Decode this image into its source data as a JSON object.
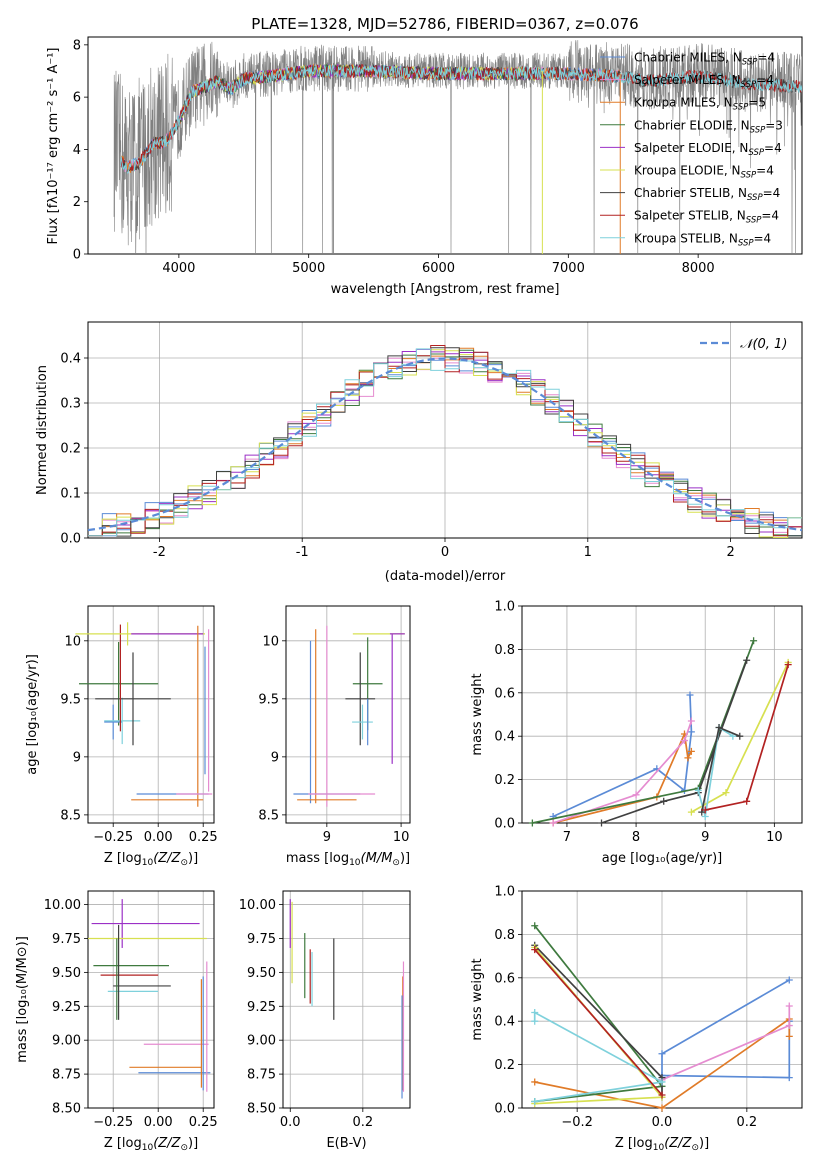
{
  "figure": {
    "colors": {
      "chabrier_miles": "#5b8bd6",
      "salpeter_miles": "#e58cd0",
      "kroupa_miles": "#e07b28",
      "chabrier_elodie": "#3f7a3f",
      "salpeter_elodie": "#9b30c6",
      "kroupa_elodie": "#d7e050",
      "chabrier_stelib": "#404040",
      "salpeter_stelib": "#b22222",
      "kroupa_stelib": "#7fd1dc",
      "observed": "#808080",
      "gaussian": "#5b8bd6"
    }
  },
  "chart_data": [
    {
      "id": "spectrum",
      "type": "line",
      "title": "PLATE=1328, MJD=52786, FIBERID=0367, z=0.076",
      "xlabel": "wavelength [Angstrom, rest frame]",
      "ylabel": "Flux [fλ10⁻¹⁷ erg cm⁻² s⁻¹ A⁻¹]",
      "xlim": [
        3300,
        8800
      ],
      "ylim": [
        0,
        8.3
      ],
      "xticks": [
        4000,
        5000,
        6000,
        7000,
        8000
      ],
      "yticks": [
        0,
        2,
        4,
        6,
        8
      ],
      "grid": false,
      "legend": "right",
      "legend_entries": [
        {
          "label": "Chabrier MILES, N",
          "sub": "SSP",
          "tail": "=4",
          "color_key": "chabrier_miles"
        },
        {
          "label": "Salpeter MILES, N",
          "sub": "SSP",
          "tail": "=4",
          "color_key": "salpeter_miles"
        },
        {
          "label": "Kroupa MILES, N",
          "sub": "SSP",
          "tail": "=5",
          "color_key": "kroupa_miles"
        },
        {
          "label": "Chabrier ELODIE, N",
          "sub": "SSP",
          "tail": "=3",
          "color_key": "chabrier_elodie"
        },
        {
          "label": "Salpeter ELODIE, N",
          "sub": "SSP",
          "tail": "=4",
          "color_key": "salpeter_elodie"
        },
        {
          "label": "Kroupa ELODIE, N",
          "sub": "SSP",
          "tail": "=4",
          "color_key": "kroupa_elodie"
        },
        {
          "label": "Chabrier STELIB, N",
          "sub": "SSP",
          "tail": "=4",
          "color_key": "chabrier_stelib"
        },
        {
          "label": "Salpeter STELIB, N",
          "sub": "SSP",
          "tail": "=4",
          "color_key": "salpeter_stelib"
        },
        {
          "label": "Kroupa STELIB, N",
          "sub": "SSP",
          "tail": "=4",
          "color_key": "kroupa_stelib"
        }
      ],
      "model_continuum": {
        "x": [
          3500,
          3600,
          3700,
          3800,
          3900,
          4000,
          4100,
          4200,
          4300,
          4400,
          4500,
          4700,
          5000,
          5500,
          6000,
          6500,
          7000,
          7400,
          7600,
          8000,
          8400,
          8800
        ],
        "y": [
          4.0,
          3.4,
          3.6,
          4.3,
          4.4,
          5.2,
          6.3,
          6.5,
          6.7,
          6.4,
          6.8,
          6.9,
          7.1,
          7.1,
          7.0,
          7.0,
          7.0,
          6.9,
          6.7,
          6.9,
          6.6,
          6.5
        ]
      },
      "observed_note": "observed spectrum drawn as noisy grey trace around the model continuum"
    },
    {
      "id": "residuals",
      "type": "area",
      "xlabel": "(data-model)/error",
      "ylabel": "Normed distribution",
      "xlim": [
        -2.5,
        2.5
      ],
      "ylim": [
        0,
        0.48
      ],
      "xticks": [
        -2,
        -1,
        0,
        1,
        2
      ],
      "yticks": [
        0.0,
        0.1,
        0.2,
        0.3,
        0.4
      ],
      "grid": true,
      "legend": "top-right",
      "legend_label": "𝒩(0, 1)",
      "bin_width": 0.1
    },
    {
      "id": "z_age",
      "type": "scatter",
      "xlabel_parts": [
        "Z [log",
        "10",
        "(Z/Z",
        "⊙",
        ")]"
      ],
      "ylabel": "age  [log₁₀(age/yr)]",
      "xlim": [
        -0.39,
        0.31
      ],
      "ylim": [
        8.43,
        10.3
      ],
      "xticks": [
        -0.25,
        0.0,
        0.25
      ],
      "xticklabels": [
        "−0.25",
        "0.00",
        "0.25"
      ],
      "yticks": [
        8.5,
        9.0,
        9.5,
        10.0
      ],
      "grid": true,
      "points": [
        {
          "x": -0.22,
          "y": 9.63,
          "ex": 0.22,
          "ey": 0.36,
          "c": "chabrier_elodie"
        },
        {
          "x": -0.25,
          "y": 9.3,
          "ex": 0.05,
          "ey": 0.15,
          "c": "chabrier_miles"
        },
        {
          "x": -0.2,
          "y": 9.31,
          "ex": 0.1,
          "ey": 0.2,
          "c": "kroupa_stelib"
        },
        {
          "x": -0.14,
          "y": 9.5,
          "ex": 0.21,
          "ey": 0.4,
          "c": "chabrier_stelib"
        },
        {
          "x": -0.21,
          "y": 9.68,
          "ex": 0.0,
          "ey": 0.46,
          "c": "salpeter_stelib"
        },
        {
          "x": -0.17,
          "y": 10.06,
          "ex": 0.0,
          "ey": 0.1,
          "c": "kroupa_elodie"
        },
        {
          "x": -0.1,
          "y": 10.06,
          "ex": 0.36,
          "ey": 0.0,
          "c": "kroupa_elodie"
        },
        {
          "x": 0.05,
          "y": 10.06,
          "ex": 0.2,
          "ey": 0.0,
          "c": "salpeter_elodie"
        },
        {
          "x": 0.22,
          "y": 9.35,
          "ex": 0.0,
          "ey": 0.78,
          "c": "kroupa_miles"
        },
        {
          "x": 0.26,
          "y": 9.4,
          "ex": 0.0,
          "ey": 0.55,
          "c": "chabrier_miles"
        },
        {
          "x": 0.28,
          "y": 9.4,
          "ex": 0.0,
          "ey": 0.7,
          "c": "salpeter_miles"
        },
        {
          "x": 0.05,
          "y": 8.63,
          "ex": 0.2,
          "ey": 0.0,
          "c": "kroupa_miles"
        },
        {
          "x": 0.08,
          "y": 8.68,
          "ex": 0.2,
          "ey": 0.0,
          "c": "chabrier_miles"
        },
        {
          "x": 0.2,
          "y": 8.68,
          "ex": 0.1,
          "ey": 0.0,
          "c": "salpeter_miles"
        }
      ]
    },
    {
      "id": "mass_age",
      "type": "scatter",
      "xlabel_parts": [
        "mass [log",
        "10",
        "(M/M",
        "⊙",
        ")]"
      ],
      "xlim": [
        8.45,
        10.12
      ],
      "ylim": [
        8.43,
        10.3
      ],
      "xticks": [
        9,
        10
      ],
      "yticks": [
        8.5,
        9.0,
        9.5,
        10.0
      ],
      "grid": true,
      "points": [
        {
          "x": 8.78,
          "y": 9.3,
          "ex": 0.0,
          "ey": 0.7,
          "c": "chabrier_miles"
        },
        {
          "x": 8.85,
          "y": 9.35,
          "ex": 0.0,
          "ey": 0.75,
          "c": "kroupa_miles"
        },
        {
          "x": 9.0,
          "y": 9.35,
          "ex": 0.0,
          "ey": 0.78,
          "c": "salpeter_miles"
        },
        {
          "x": 9.55,
          "y": 9.63,
          "ex": 0.2,
          "ey": 0.4,
          "c": "chabrier_elodie"
        },
        {
          "x": 9.45,
          "y": 9.5,
          "ex": 0.2,
          "ey": 0.4,
          "c": "chabrier_stelib"
        },
        {
          "x": 9.48,
          "y": 9.3,
          "ex": 0.14,
          "ey": 0.15,
          "c": "kroupa_stelib"
        },
        {
          "x": 9.55,
          "y": 9.3,
          "ex": 0.0,
          "ey": 0.2,
          "c": "chabrier_miles"
        },
        {
          "x": 9.88,
          "y": 9.5,
          "ex": 0.0,
          "ey": 0.56,
          "c": "salpeter_elodie"
        },
        {
          "x": 9.7,
          "y": 10.06,
          "ex": 0.35,
          "ey": 0.0,
          "c": "kroupa_elodie"
        },
        {
          "x": 9.95,
          "y": 10.06,
          "ex": 0.1,
          "ey": 0.0,
          "c": "salpeter_elodie"
        },
        {
          "x": 9.0,
          "y": 8.68,
          "ex": 0.45,
          "ey": 0.0,
          "c": "chabrier_miles"
        },
        {
          "x": 9.2,
          "y": 8.68,
          "ex": 0.45,
          "ey": 0.0,
          "c": "salpeter_miles"
        },
        {
          "x": 9.0,
          "y": 8.63,
          "ex": 0.4,
          "ey": 0.0,
          "c": "kroupa_miles"
        }
      ]
    },
    {
      "id": "age_weight",
      "type": "line",
      "xlabel": "age  [log₁₀(age/yr)]",
      "ylabel": "mass weight",
      "xlim": [
        6.35,
        10.4
      ],
      "ylim": [
        0,
        1.0
      ],
      "xticks": [
        7,
        8,
        9,
        10
      ],
      "yticks": [
        0.0,
        0.2,
        0.4,
        0.6,
        0.8,
        1.0
      ],
      "grid": true,
      "series": [
        {
          "c": "chabrier_miles",
          "x": [
            6.8,
            8.3,
            8.7,
            8.8,
            8.78
          ],
          "y": [
            0.03,
            0.25,
            0.15,
            0.42,
            0.59
          ]
        },
        {
          "c": "kroupa_miles",
          "x": [
            6.8,
            8.3,
            8.7,
            8.75,
            8.8
          ],
          "y": [
            0.0,
            0.12,
            0.41,
            0.3,
            0.33
          ]
        },
        {
          "c": "salpeter_miles",
          "x": [
            6.8,
            8.0,
            8.7,
            8.8
          ],
          "y": [
            0.0,
            0.13,
            0.38,
            0.47
          ]
        },
        {
          "c": "chabrier_elodie",
          "x": [
            6.5,
            8.9,
            9.7
          ],
          "y": [
            0.0,
            0.16,
            0.84
          ]
        },
        {
          "c": "chabrier_stelib",
          "x": [
            7.5,
            8.4,
            8.9,
            9.6
          ],
          "y": [
            0.0,
            0.1,
            0.14,
            0.75
          ]
        },
        {
          "c": "kroupa_elodie",
          "x": [
            8.8,
            9.3,
            10.2
          ],
          "y": [
            0.05,
            0.14,
            0.74
          ]
        },
        {
          "c": "kroupa_stelib",
          "x": [
            8.9,
            9.0,
            9.2,
            9.4
          ],
          "y": [
            0.15,
            0.03,
            0.44,
            0.4
          ]
        },
        {
          "c": "chabrier_stelib",
          "x": [
            8.95,
            9.2,
            9.5
          ],
          "y": [
            0.05,
            0.44,
            0.4
          ]
        },
        {
          "c": "salpeter_stelib",
          "x": [
            9.0,
            9.6,
            10.2
          ],
          "y": [
            0.06,
            0.1,
            0.73
          ]
        }
      ]
    },
    {
      "id": "z_mass",
      "type": "scatter",
      "xlabel_parts": [
        "Z [log",
        "10",
        "(Z/Z",
        "⊙",
        ")]"
      ],
      "ylabel": "mass [log₁₀(M/M⊙)]",
      "xlim": [
        -0.39,
        0.31
      ],
      "ylim": [
        8.5,
        10.1
      ],
      "xticks": [
        -0.25,
        0.0,
        0.25
      ],
      "xticklabels": [
        "−0.25",
        "0.00",
        "0.25"
      ],
      "yticks": [
        8.5,
        8.75,
        9.0,
        9.25,
        9.5,
        9.75,
        10.0
      ],
      "yticklabels": [
        "8.50",
        "8.75",
        "9.00",
        "9.25",
        "9.50",
        "9.75",
        "10.00"
      ],
      "grid": true,
      "points": [
        {
          "x": -0.07,
          "y": 9.86,
          "ex": 0.3,
          "ey": 0.0,
          "c": "salpeter_elodie"
        },
        {
          "x": -0.2,
          "y": 9.86,
          "ex": 0.0,
          "ey": 0.18,
          "c": "salpeter_elodie"
        },
        {
          "x": -0.06,
          "y": 9.75,
          "ex": 0.33,
          "ey": 0.0,
          "c": "kroupa_elodie"
        },
        {
          "x": -0.15,
          "y": 9.55,
          "ex": 0.21,
          "ey": 0.0,
          "c": "chabrier_elodie"
        },
        {
          "x": -0.16,
          "y": 9.48,
          "ex": 0.16,
          "ey": 0.0,
          "c": "salpeter_stelib"
        },
        {
          "x": -0.09,
          "y": 9.4,
          "ex": 0.16,
          "ey": 0.0,
          "c": "chabrier_stelib"
        },
        {
          "x": -0.14,
          "y": 9.36,
          "ex": 0.14,
          "ey": 0.0,
          "c": "kroupa_stelib"
        },
        {
          "x": -0.22,
          "y": 9.5,
          "ex": 0.0,
          "ey": 0.35,
          "c": "chabrier_stelib"
        },
        {
          "x": -0.23,
          "y": 9.45,
          "ex": 0.0,
          "ey": 0.3,
          "c": "chabrier_elodie"
        },
        {
          "x": 0.1,
          "y": 8.97,
          "ex": 0.18,
          "ey": 0.0,
          "c": "salpeter_miles"
        },
        {
          "x": 0.04,
          "y": 8.8,
          "ex": 0.2,
          "ey": 0.0,
          "c": "kroupa_miles"
        },
        {
          "x": 0.09,
          "y": 8.76,
          "ex": 0.2,
          "ey": 0.0,
          "c": "chabrier_miles"
        },
        {
          "x": 0.24,
          "y": 9.05,
          "ex": 0.0,
          "ey": 0.4,
          "c": "kroupa_miles"
        },
        {
          "x": 0.27,
          "y": 9.1,
          "ex": 0.0,
          "ey": 0.48,
          "c": "salpeter_miles"
        },
        {
          "x": 0.25,
          "y": 9.05,
          "ex": 0.0,
          "ey": 0.42,
          "c": "chabrier_miles"
        }
      ]
    },
    {
      "id": "ebv_mass",
      "type": "scatter",
      "xlabel": "E(B-V)",
      "xlim": [
        -0.02,
        0.33
      ],
      "ylim": [
        8.5,
        10.1
      ],
      "xticks": [
        0.0,
        0.2
      ],
      "xticklabels": [
        "0.0",
        "0.2"
      ],
      "yticks": [
        8.5,
        8.75,
        9.0,
        9.25,
        9.5,
        9.75,
        10.0
      ],
      "yticklabels": [
        "8.50",
        "8.75",
        "9.00",
        "9.25",
        "9.50",
        "9.75",
        "10.00"
      ],
      "grid": true,
      "points": [
        {
          "x": 0.0,
          "y": 9.86,
          "ex": 0.0,
          "ey": 0.18,
          "c": "salpeter_elodie"
        },
        {
          "x": 0.005,
          "y": 9.72,
          "ex": 0.0,
          "ey": 0.3,
          "c": "kroupa_elodie"
        },
        {
          "x": 0.04,
          "y": 9.55,
          "ex": 0.0,
          "ey": 0.24,
          "c": "chabrier_elodie"
        },
        {
          "x": 0.055,
          "y": 9.47,
          "ex": 0.0,
          "ey": 0.2,
          "c": "salpeter_stelib"
        },
        {
          "x": 0.06,
          "y": 9.45,
          "ex": 0.0,
          "ey": 0.2,
          "c": "kroupa_stelib"
        },
        {
          "x": 0.12,
          "y": 9.45,
          "ex": 0.0,
          "ey": 0.3,
          "c": "chabrier_stelib"
        },
        {
          "x": 0.31,
          "y": 9.05,
          "ex": 0.0,
          "ey": 0.42,
          "c": "kroupa_miles"
        },
        {
          "x": 0.312,
          "y": 9.1,
          "ex": 0.0,
          "ey": 0.48,
          "c": "salpeter_miles"
        },
        {
          "x": 0.308,
          "y": 8.95,
          "ex": 0.0,
          "ey": 0.38,
          "c": "chabrier_miles"
        }
      ]
    },
    {
      "id": "z_weight",
      "type": "line",
      "xlabel_parts": [
        "Z [log",
        "10",
        "(Z/Z",
        "⊙",
        ")]"
      ],
      "ylabel": "mass weight",
      "xlim": [
        -0.33,
        0.33
      ],
      "ylim": [
        0,
        1.0
      ],
      "xticks": [
        -0.2,
        0.0,
        0.2
      ],
      "xticklabels": [
        "−0.2",
        "0.0",
        "0.2"
      ],
      "yticks": [
        0.0,
        0.2,
        0.4,
        0.6,
        0.8,
        1.0
      ],
      "grid": true,
      "series": [
        {
          "c": "chabrier_miles",
          "x": [
            0.3,
            0.0,
            0.0,
            0.3,
            0.3
          ],
          "y": [
            0.59,
            0.25,
            0.15,
            0.14,
            0.4
          ]
        },
        {
          "c": "kroupa_miles",
          "x": [
            -0.3,
            0.0,
            0.3,
            0.3
          ],
          "y": [
            0.12,
            0.0,
            0.41,
            0.33
          ]
        },
        {
          "c": "salpeter_miles",
          "x": [
            0.0,
            0.3,
            0.3
          ],
          "y": [
            0.13,
            0.38,
            0.47
          ]
        },
        {
          "c": "chabrier_elodie",
          "x": [
            -0.3,
            0.0,
            -0.3
          ],
          "y": [
            0.84,
            0.1,
            0.03
          ]
        },
        {
          "c": "chabrier_stelib",
          "x": [
            -0.3,
            0.0,
            0.0
          ],
          "y": [
            0.75,
            0.14,
            0.05
          ]
        },
        {
          "c": "kroupa_elodie",
          "x": [
            -0.3,
            0.0,
            -0.3
          ],
          "y": [
            0.74,
            0.05,
            0.02
          ]
        },
        {
          "c": "kroupa_stelib",
          "x": [
            -0.3,
            0.0,
            -0.3,
            -0.3
          ],
          "y": [
            0.03,
            0.12,
            0.44,
            0.4
          ]
        },
        {
          "c": "salpeter_stelib",
          "x": [
            -0.3,
            0.0
          ],
          "y": [
            0.73,
            0.06
          ]
        }
      ]
    }
  ]
}
